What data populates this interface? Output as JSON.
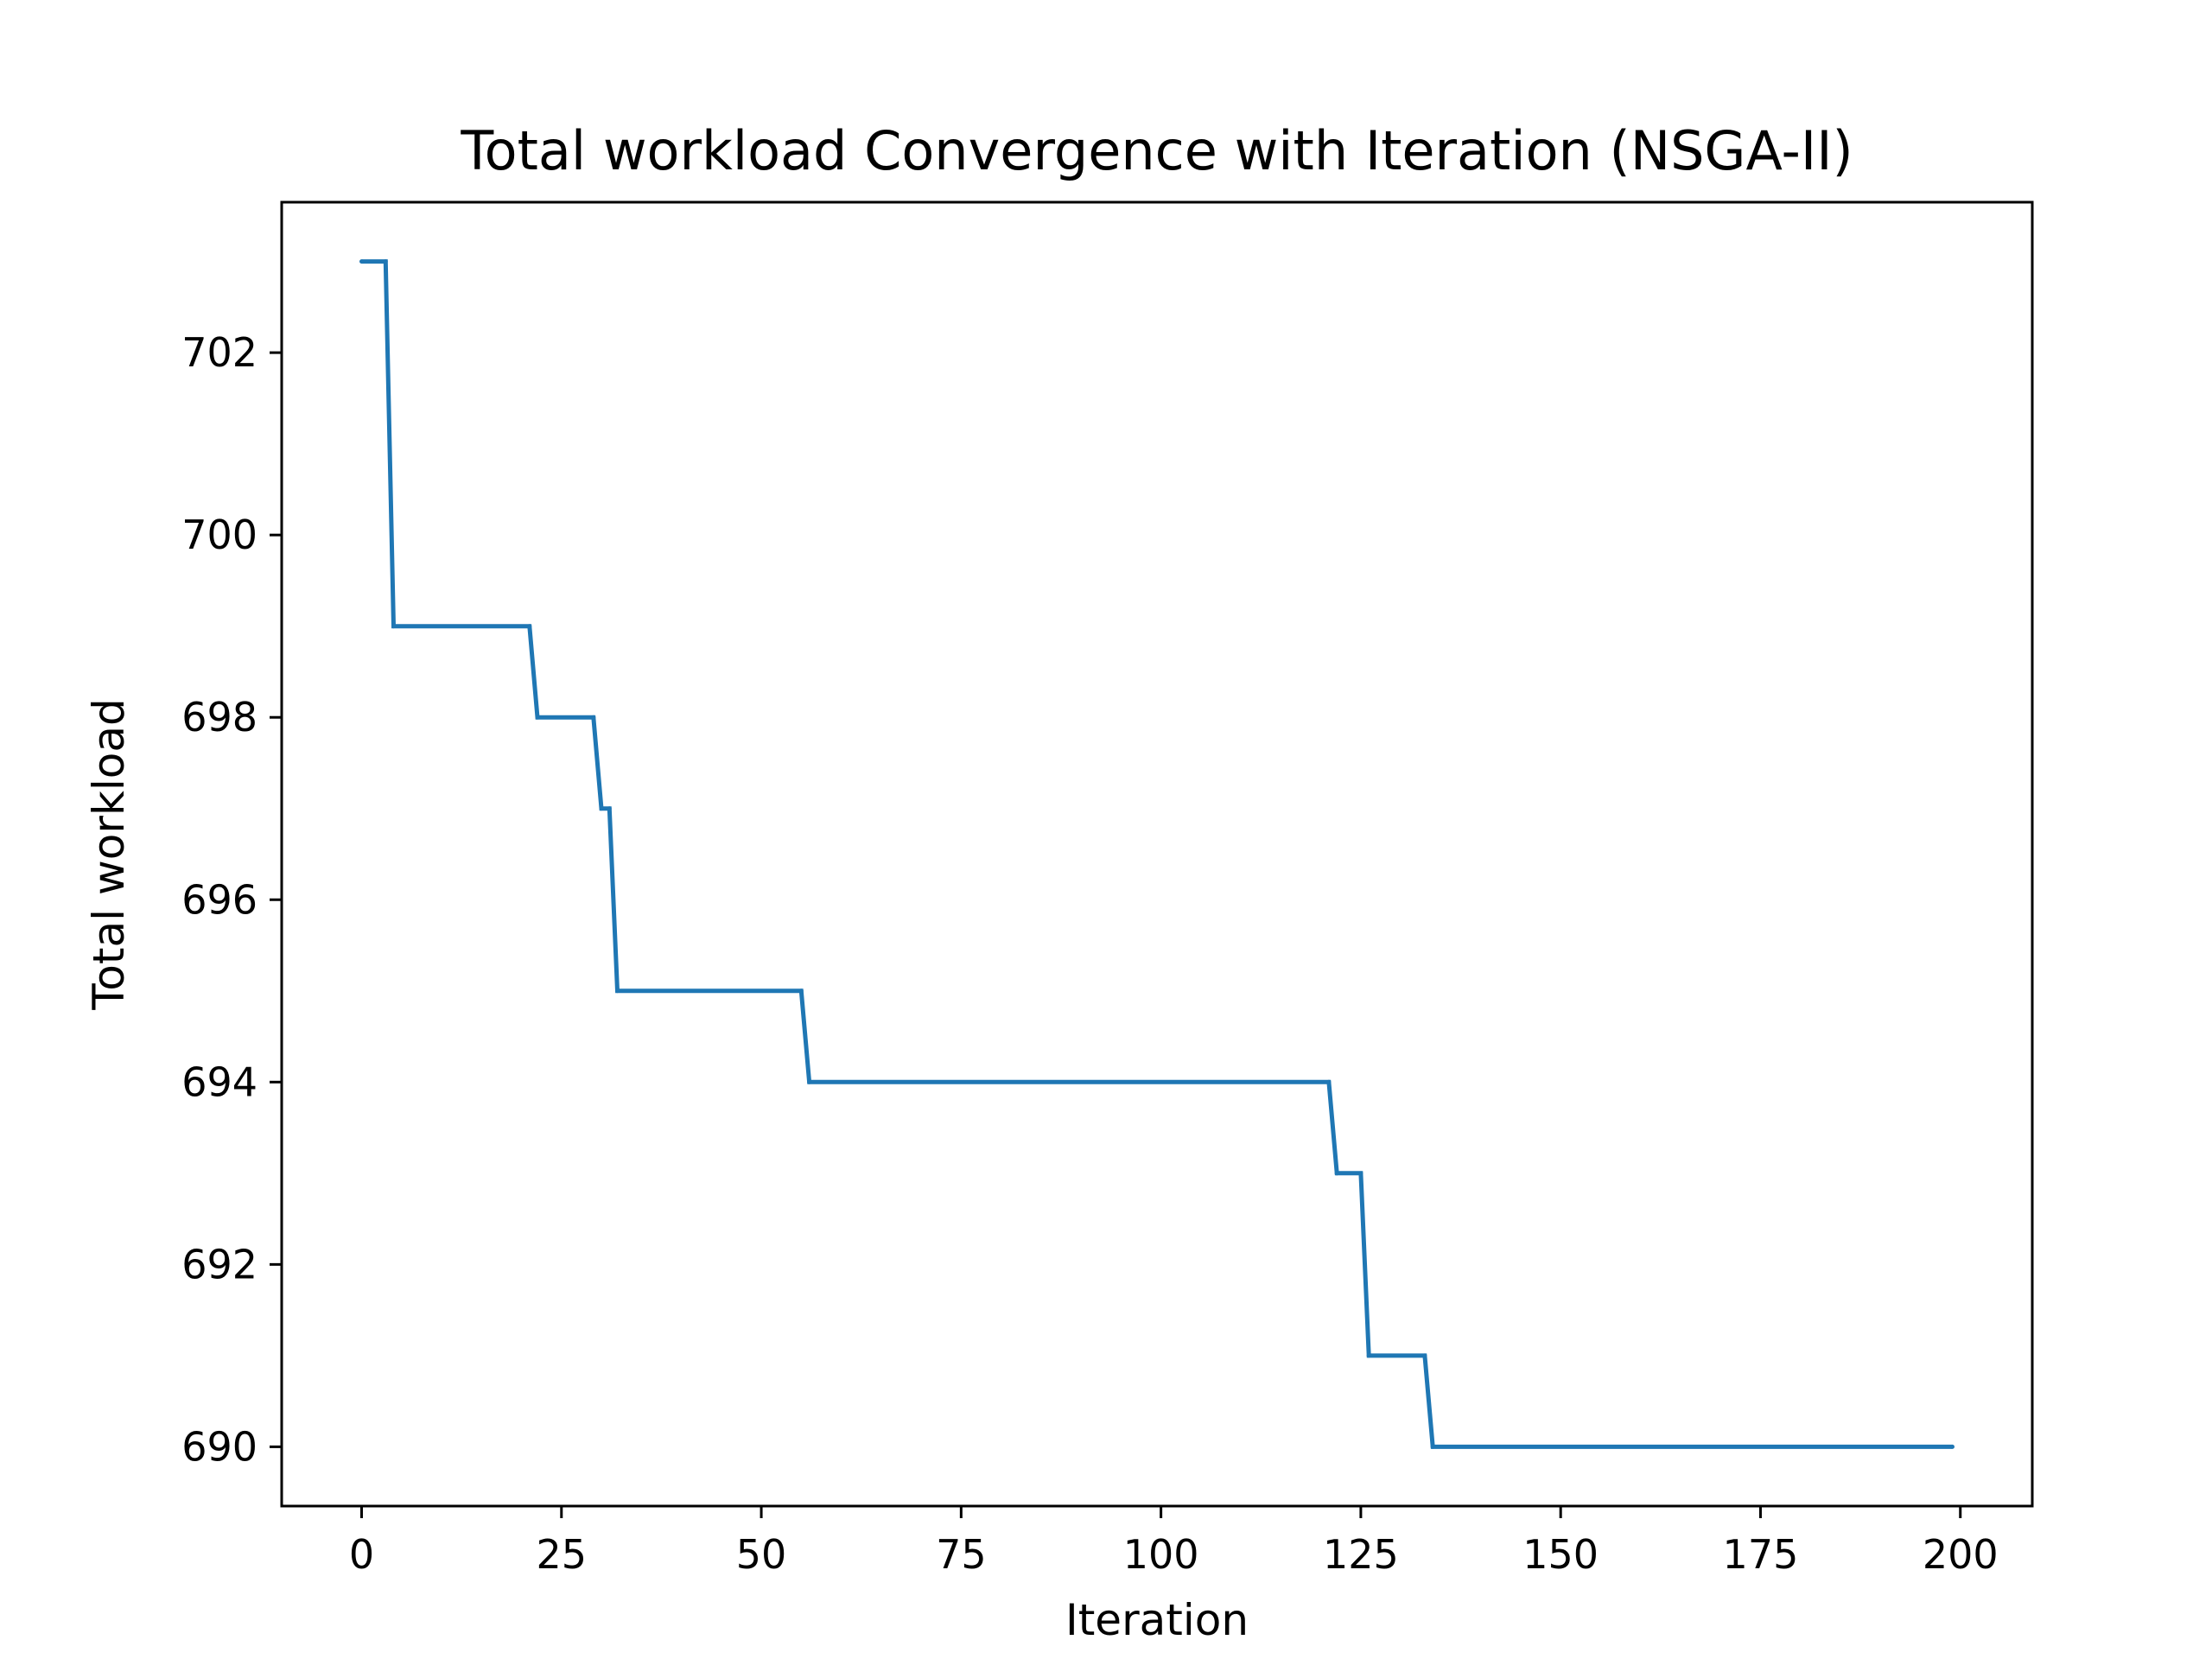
{
  "chart_data": {
    "type": "line",
    "title": "Total workload Convergence with Iteration (NSGA-II)",
    "xlabel": "Iteration",
    "ylabel": "Total workload",
    "xlim": [
      -10,
      209
    ],
    "ylim": [
      689.35,
      703.65
    ],
    "x_ticks": [
      0,
      25,
      50,
      75,
      100,
      125,
      150,
      175,
      200
    ],
    "x_tick_labels": [
      "0",
      "25",
      "50",
      "75",
      "100",
      "125",
      "150",
      "175",
      "200"
    ],
    "y_ticks": [
      690,
      692,
      694,
      696,
      698,
      700,
      702
    ],
    "y_tick_labels": [
      "690",
      "692",
      "694",
      "696",
      "698",
      "700",
      "702"
    ],
    "grid": false,
    "legend": "none",
    "series": [
      {
        "color": "#1f77b4",
        "x": [
          0,
          3,
          4,
          21,
          22,
          29,
          30,
          31,
          32,
          55,
          56,
          121,
          122,
          125,
          126,
          133,
          134,
          199
        ],
        "y": [
          703,
          703,
          699,
          699,
          698,
          698,
          697,
          697,
          695,
          695,
          694,
          694,
          693,
          693,
          691,
          691,
          690,
          690
        ]
      }
    ]
  }
}
